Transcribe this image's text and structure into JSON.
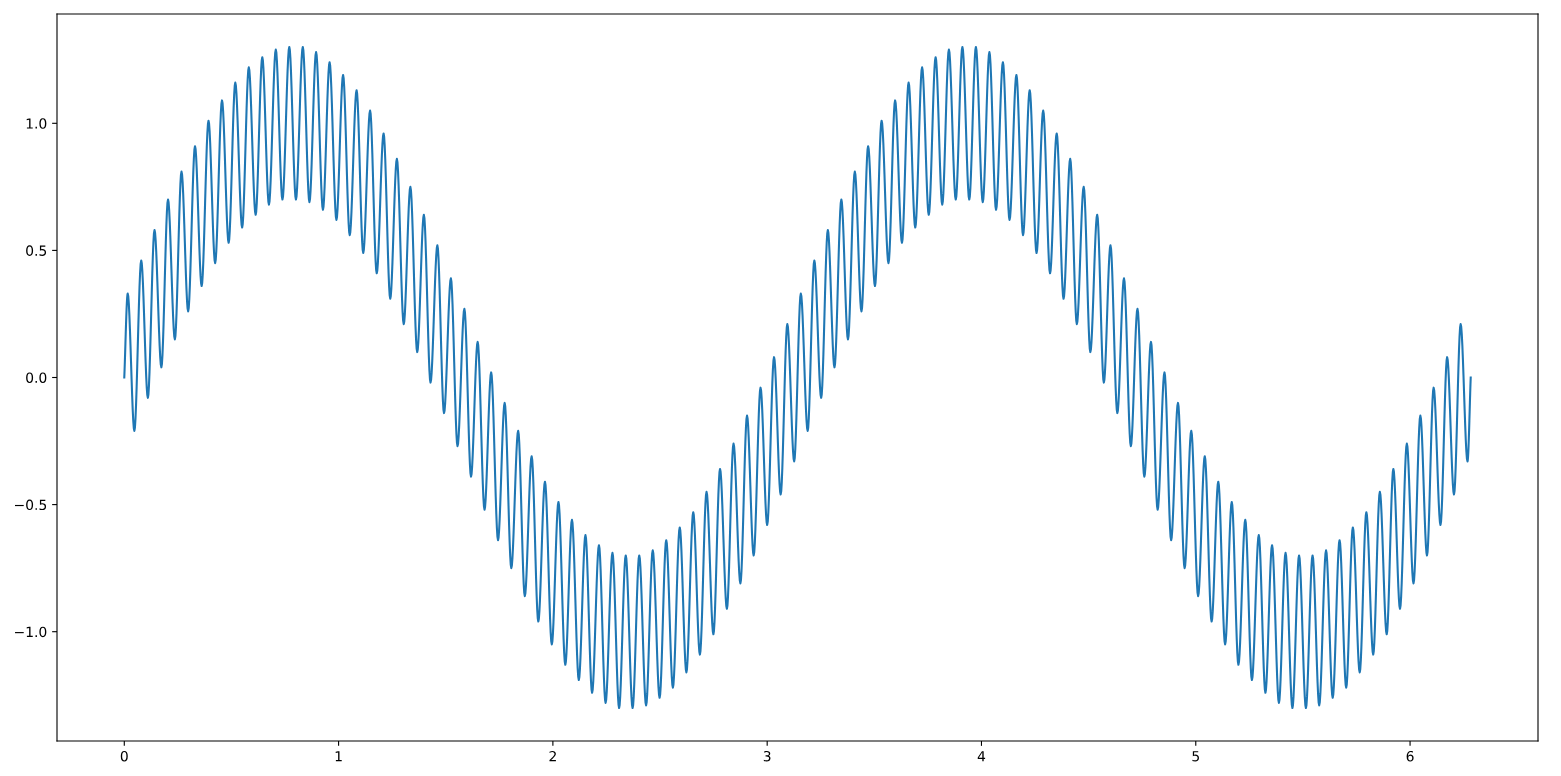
{
  "chart_data": {
    "type": "line",
    "x": [
      0,
      0.016,
      0.047,
      0.079,
      0.11,
      0.141,
      0.173,
      0.204,
      0.236,
      0.267,
      0.298,
      0.33,
      0.361,
      0.393,
      0.424,
      0.456,
      0.487,
      0.518,
      0.55,
      0.581,
      0.613,
      0.644,
      0.675,
      0.707,
      0.738,
      0.77,
      0.801,
      0.833,
      0.864,
      0.895,
      0.927,
      0.958,
      0.99,
      1.021,
      1.052,
      1.084,
      1.115,
      1.147,
      1.178,
      1.21,
      1.241,
      1.272,
      1.304,
      1.335,
      1.367,
      1.398,
      1.429,
      1.461,
      1.492,
      1.524,
      1.555,
      1.587,
      1.618,
      1.649,
      1.681,
      1.712,
      1.744,
      1.775,
      1.806,
      1.838,
      1.869,
      1.901,
      1.932,
      1.963,
      1.995,
      2.026,
      2.058,
      2.089,
      2.121,
      2.152,
      2.183,
      2.215,
      2.246,
      2.278,
      2.309,
      2.34,
      2.372,
      2.403,
      2.435,
      2.466,
      2.498,
      2.529,
      2.56,
      2.592,
      2.623,
      2.655,
      2.686,
      2.717,
      2.749,
      2.78,
      2.812,
      2.843,
      2.875,
      2.906,
      2.937,
      2.969,
      3.0,
      3.032,
      3.063,
      3.094,
      3.126,
      3.157,
      3.189,
      3.22,
      3.252,
      3.283,
      3.314,
      3.346,
      3.377,
      3.409,
      3.44,
      3.471,
      3.503,
      3.534,
      3.566,
      3.597,
      3.629,
      3.66,
      3.691,
      3.723,
      3.754,
      3.786,
      3.817,
      3.848,
      3.88,
      3.911,
      3.943,
      3.974,
      4.006,
      4.037,
      4.068,
      4.1,
      4.131,
      4.163,
      4.194,
      4.225,
      4.257,
      4.288,
      4.32,
      4.351,
      4.383,
      4.414,
      4.445,
      4.477,
      4.508,
      4.54,
      4.571,
      4.602,
      4.634,
      4.665,
      4.697,
      4.728,
      4.76,
      4.791,
      4.822,
      4.854,
      4.885,
      4.917,
      4.948,
      4.979,
      5.011,
      5.042,
      5.074,
      5.105,
      5.137,
      5.168,
      5.199,
      5.231,
      5.262,
      5.294,
      5.325,
      5.356,
      5.388,
      5.419,
      5.451,
      5.482,
      5.514,
      5.545,
      5.576,
      5.608,
      5.639,
      5.671,
      5.702,
      5.733,
      5.765,
      5.796,
      5.828,
      5.859,
      5.891,
      5.922,
      5.953,
      5.985,
      6.016,
      6.048,
      6.079,
      6.11,
      6.142,
      6.173,
      6.205,
      6.236,
      6.268,
      6.283
    ],
    "series": [
      {
        "color": "#1f77b4",
        "values": [
          0.0,
          0.33,
          -0.21,
          0.46,
          -0.08,
          0.58,
          0.04,
          0.7,
          0.15,
          0.81,
          0.26,
          0.91,
          0.36,
          1.01,
          0.45,
          1.09,
          0.53,
          1.16,
          0.59,
          1.22,
          0.64,
          1.26,
          0.68,
          1.29,
          0.7,
          1.3,
          0.7,
          1.3,
          0.69,
          1.28,
          0.66,
          1.24,
          0.62,
          1.19,
          0.56,
          1.13,
          0.49,
          1.05,
          0.41,
          0.96,
          0.31,
          0.86,
          0.21,
          0.75,
          0.1,
          0.64,
          -0.02,
          0.52,
          -0.14,
          0.39,
          -0.27,
          0.27,
          -0.39,
          0.14,
          -0.52,
          0.02,
          -0.64,
          -0.1,
          -0.75,
          -0.21,
          -0.86,
          -0.31,
          -0.96,
          -0.41,
          -1.05,
          -0.49,
          -1.13,
          -0.56,
          -1.19,
          -0.62,
          -1.24,
          -0.66,
          -1.28,
          -0.69,
          -1.3,
          -0.7,
          -1.3,
          -0.7,
          -1.29,
          -0.68,
          -1.26,
          -0.64,
          -1.22,
          -0.59,
          -1.16,
          -0.53,
          -1.09,
          -0.45,
          -1.01,
          -0.36,
          -0.91,
          -0.26,
          -0.81,
          -0.15,
          -0.7,
          -0.04,
          -0.58,
          0.08,
          -0.46,
          0.21,
          -0.33,
          0.33,
          -0.21,
          0.46,
          -0.08,
          0.58,
          0.04,
          0.7,
          0.15,
          0.81,
          0.26,
          0.91,
          0.36,
          1.01,
          0.45,
          1.09,
          0.53,
          1.16,
          0.59,
          1.22,
          0.64,
          1.26,
          0.68,
          1.29,
          0.7,
          1.3,
          0.7,
          1.3,
          0.69,
          1.28,
          0.66,
          1.24,
          0.62,
          1.19,
          0.56,
          1.13,
          0.49,
          1.05,
          0.41,
          0.96,
          0.31,
          0.86,
          0.21,
          0.75,
          0.1,
          0.64,
          -0.02,
          0.52,
          -0.14,
          0.39,
          -0.27,
          0.27,
          -0.39,
          0.14,
          -0.52,
          0.02,
          -0.64,
          -0.1,
          -0.75,
          -0.21,
          -0.86,
          -0.31,
          -0.96,
          -0.41,
          -1.05,
          -0.49,
          -1.13,
          -0.56,
          -1.19,
          -0.62,
          -1.24,
          -0.66,
          -1.28,
          -0.69,
          -1.3,
          -0.7,
          -1.3,
          -0.7,
          -1.29,
          -0.68,
          -1.26,
          -0.64,
          -1.22,
          -0.59,
          -1.16,
          -0.53,
          -1.09,
          -0.45,
          -1.01,
          -0.36,
          -0.91,
          -0.26,
          -0.81,
          -0.15,
          -0.7,
          -0.04,
          -0.58,
          0.08,
          -0.46,
          0.21,
          -0.33,
          0.0
        ]
      }
    ],
    "xlim": [
      -0.314,
      6.597
    ],
    "ylim": [
      -1.43,
      1.43
    ],
    "xticks": [
      0,
      1,
      2,
      3,
      4,
      5,
      6
    ],
    "yticks": [
      {
        "value": -1.0,
        "label": "−1.0"
      },
      {
        "value": -0.5,
        "label": "−0.5"
      },
      {
        "value": 0.0,
        "label": "0.0"
      },
      {
        "value": 0.5,
        "label": "0.5"
      },
      {
        "value": 1.0,
        "label": "1.0"
      }
    ]
  }
}
